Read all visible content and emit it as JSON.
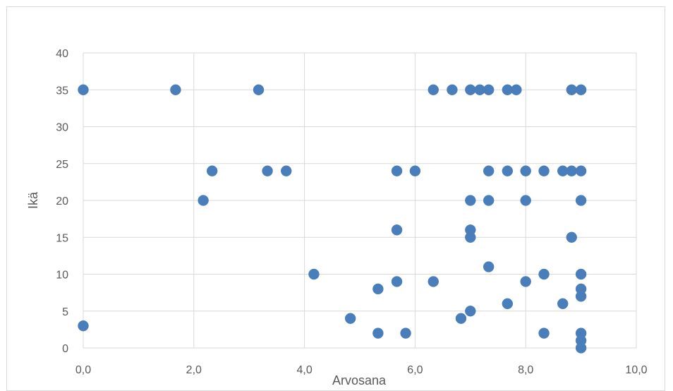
{
  "chart_data": {
    "type": "scatter",
    "title": "",
    "xlabel": "Arvosana",
    "ylabel": "Ikä",
    "xlim": [
      0,
      10
    ],
    "ylim": [
      0,
      40
    ],
    "x_ticks": [
      0,
      2,
      4,
      6,
      8,
      10
    ],
    "y_ticks": [
      0,
      5,
      10,
      15,
      20,
      25,
      30,
      35,
      40
    ],
    "x_tick_labels": [
      "0,0",
      "2,0",
      "4,0",
      "6,0",
      "8,0",
      "10,0"
    ],
    "y_tick_labels": [
      "0",
      "5",
      "10",
      "15",
      "20",
      "25",
      "30",
      "35",
      "40"
    ],
    "grid": true,
    "legend": "none",
    "marker_color": "#4a7ebb",
    "points": [
      [
        0.0,
        35
      ],
      [
        1.67,
        35
      ],
      [
        3.17,
        35
      ],
      [
        6.33,
        35
      ],
      [
        6.67,
        35
      ],
      [
        7.0,
        35
      ],
      [
        7.17,
        35
      ],
      [
        7.33,
        35
      ],
      [
        7.67,
        35
      ],
      [
        7.83,
        35
      ],
      [
        8.83,
        35
      ],
      [
        9.0,
        35
      ],
      [
        2.33,
        24
      ],
      [
        3.33,
        24
      ],
      [
        3.67,
        24
      ],
      [
        5.67,
        24
      ],
      [
        6.0,
        24
      ],
      [
        7.33,
        24
      ],
      [
        7.67,
        24
      ],
      [
        8.0,
        24
      ],
      [
        8.33,
        24
      ],
      [
        8.67,
        24
      ],
      [
        8.83,
        24
      ],
      [
        9.0,
        24
      ],
      [
        2.17,
        20
      ],
      [
        7.0,
        20
      ],
      [
        7.33,
        20
      ],
      [
        8.0,
        20
      ],
      [
        9.0,
        20
      ],
      [
        5.67,
        16
      ],
      [
        7.0,
        16
      ],
      [
        7.0,
        15
      ],
      [
        8.83,
        15
      ],
      [
        7.33,
        11
      ],
      [
        4.17,
        10
      ],
      [
        8.33,
        10
      ],
      [
        9.0,
        10
      ],
      [
        5.67,
        9
      ],
      [
        6.33,
        9
      ],
      [
        8.0,
        9
      ],
      [
        5.33,
        8
      ],
      [
        9.0,
        8
      ],
      [
        9.0,
        7
      ],
      [
        7.67,
        6
      ],
      [
        8.67,
        6
      ],
      [
        7.0,
        5
      ],
      [
        4.83,
        4
      ],
      [
        6.83,
        4
      ],
      [
        0.0,
        3
      ],
      [
        5.33,
        2
      ],
      [
        5.83,
        2
      ],
      [
        8.33,
        2
      ],
      [
        9.0,
        2
      ],
      [
        9.0,
        1
      ],
      [
        9.0,
        0
      ]
    ]
  }
}
